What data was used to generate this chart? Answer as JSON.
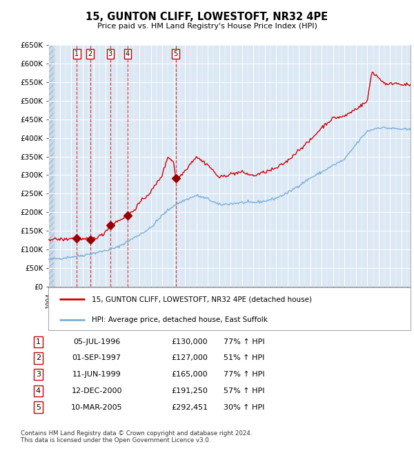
{
  "title": "15, GUNTON CLIFF, LOWESTOFT, NR32 4PE",
  "subtitle": "Price paid vs. HM Land Registry's House Price Index (HPI)",
  "transactions": [
    {
      "num": 1,
      "date": "05-JUL-1996",
      "year": 1996.51,
      "price": 130000,
      "pct": "77%",
      "dir": "↑"
    },
    {
      "num": 2,
      "date": "01-SEP-1997",
      "year": 1997.67,
      "price": 127000,
      "pct": "51%",
      "dir": "↑"
    },
    {
      "num": 3,
      "date": "11-JUN-1999",
      "year": 1999.44,
      "price": 165000,
      "pct": "77%",
      "dir": "↑"
    },
    {
      "num": 4,
      "date": "12-DEC-2000",
      "year": 2000.95,
      "price": 191250,
      "pct": "57%",
      "dir": "↑"
    },
    {
      "num": 5,
      "date": "10-MAR-2005",
      "year": 2005.19,
      "price": 292451,
      "pct": "30%",
      "dir": "↑"
    }
  ],
  "hpi_line_color": "#7aaed6",
  "price_line_color": "#cc0000",
  "marker_color": "#990000",
  "dashed_line_color": "#cc2222",
  "background_color": "#dce9f5",
  "grid_color": "#ffffff",
  "ylim": [
    0,
    650000
  ],
  "xlim_start": 1994.0,
  "xlim_end": 2025.8,
  "legend_label_red": "15, GUNTON CLIFF, LOWESTOFT, NR32 4PE (detached house)",
  "legend_label_blue": "HPI: Average price, detached house, East Suffolk",
  "footer": "Contains HM Land Registry data © Crown copyright and database right 2024.\nThis data is licensed under the Open Government Licence v3.0.",
  "yticks": [
    0,
    50000,
    100000,
    150000,
    200000,
    250000,
    300000,
    350000,
    400000,
    450000,
    500000,
    550000,
    600000,
    650000
  ],
  "ytick_labels": [
    "£0",
    "£50K",
    "£100K",
    "£150K",
    "£200K",
    "£250K",
    "£300K",
    "£350K",
    "£400K",
    "£450K",
    "£500K",
    "£550K",
    "£600K",
    "£650K"
  ],
  "hpi_key_years": [
    1994,
    1995,
    1996,
    1997,
    1998,
    1999,
    2000,
    2001,
    2002,
    2003,
    2004,
    2005,
    2006,
    2007,
    2008,
    2009,
    2010,
    2011,
    2012,
    2013,
    2014,
    2015,
    2016,
    2017,
    2018,
    2019,
    2020,
    2021,
    2022,
    2023,
    2024,
    2025.5
  ],
  "hpi_key_vals": [
    73000,
    76000,
    80000,
    84000,
    90000,
    97000,
    105000,
    122000,
    140000,
    158000,
    192000,
    218000,
    233000,
    245000,
    236000,
    220000,
    223000,
    226000,
    226000,
    230000,
    238000,
    252000,
    272000,
    292000,
    308000,
    326000,
    342000,
    382000,
    418000,
    428000,
    426000,
    422000
  ],
  "red_key_years": [
    1994.0,
    1995.5,
    1996.0,
    1996.51,
    1997.0,
    1997.67,
    1998.2,
    1998.8,
    1999.44,
    2000.0,
    2000.95,
    2001.5,
    2002.0,
    2003.0,
    2004.0,
    2004.5,
    2005.0,
    2005.19,
    2005.6,
    2006.0,
    2006.5,
    2007.0,
    2007.3,
    2008.0,
    2009.0,
    2009.5,
    2010.0,
    2011.0,
    2012.0,
    2013.0,
    2014.0,
    2015.0,
    2016.0,
    2017.0,
    2018.0,
    2019.0,
    2020.0,
    2021.0,
    2022.0,
    2022.4,
    2022.8,
    2023.2,
    2023.8,
    2024.3,
    2025.0,
    2025.5
  ],
  "red_key_vals": [
    128000,
    127000,
    130000,
    130000,
    127000,
    127000,
    132000,
    140000,
    165000,
    175000,
    191250,
    205000,
    225000,
    255000,
    300000,
    350000,
    335000,
    292451,
    298000,
    312000,
    332000,
    350000,
    342000,
    328000,
    293000,
    298000,
    303000,
    308000,
    298000,
    308000,
    318000,
    338000,
    368000,
    393000,
    428000,
    453000,
    458000,
    478000,
    498000,
    578000,
    568000,
    555000,
    542000,
    548000,
    545000,
    542000
  ]
}
